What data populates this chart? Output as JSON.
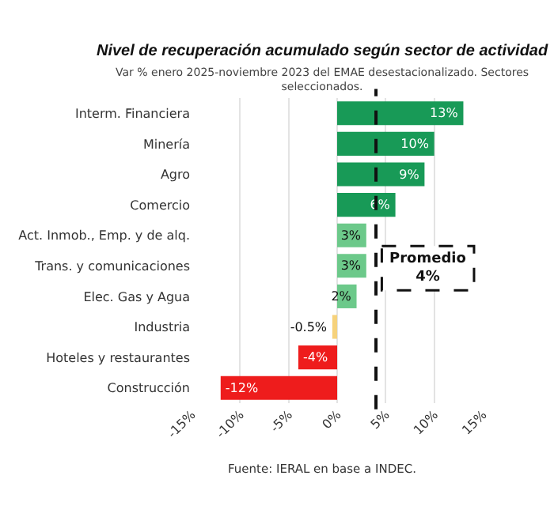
{
  "chart_data": {
    "type": "bar",
    "orientation": "horizontal",
    "title": "Nivel de recuperación acumulado según sector de actividad",
    "subtitle": "Var % enero 2025-noviembre 2023 del EMAE desestacionalizado. Sectores seleccionados.",
    "categories": [
      "Interm. Financiera",
      "Minería",
      "Agro",
      "Comercio",
      "Act. Inmob., Emp. y de alq.",
      "Trans. y comunicaciones",
      "Elec. Gas y Agua",
      "Industria",
      "Hoteles y restaurantes",
      "Construcción"
    ],
    "values": [
      13,
      10,
      9,
      6,
      3,
      3,
      2,
      -0.5,
      -4,
      -12
    ],
    "colors": [
      "#189a57",
      "#189a57",
      "#189a57",
      "#189a57",
      "#6cc98a",
      "#6cc98a",
      "#6cc98a",
      "#f6d27c",
      "#ee1c1c",
      "#ee1c1c"
    ],
    "value_labels": [
      "13%",
      "10%",
      "9%",
      "6%",
      "3%",
      "3%",
      "2%",
      "-0.5%",
      "-4%",
      "-12%"
    ],
    "xlim": [
      -15,
      15
    ],
    "xticks": [
      {
        "value": -15,
        "label": "-15%"
      },
      {
        "value": -10,
        "label": "-10%"
      },
      {
        "value": -5,
        "label": "-5%"
      },
      {
        "value": 0,
        "label": "0%"
      },
      {
        "value": 5,
        "label": "5%"
      },
      {
        "value": 10,
        "label": "10%"
      },
      {
        "value": 15,
        "label": "15%"
      }
    ],
    "ref_lines": [
      {
        "axis": "x",
        "value": 4,
        "label": "Promedio\n4%",
        "color": "#111111",
        "line_style": "dashed"
      }
    ],
    "annotations": [
      "Fuente: IERAL en base a INDEC."
    ],
    "grid": "x"
  }
}
